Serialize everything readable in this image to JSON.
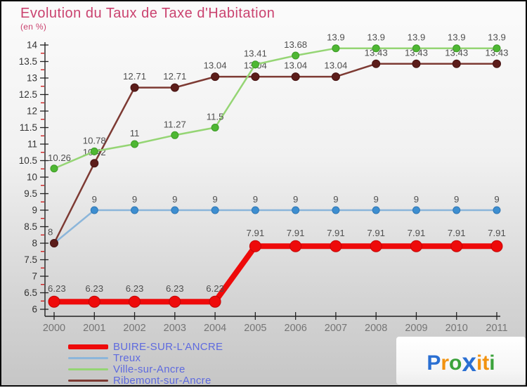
{
  "chart_data": {
    "type": "line",
    "title": "Evolution du Taux de Taxe d'Habitation",
    "subtitle": "(en %)",
    "x": [
      2000,
      2001,
      2002,
      2003,
      2004,
      2005,
      2006,
      2007,
      2008,
      2009,
      2010,
      2011
    ],
    "ylim": [
      6,
      14
    ],
    "ytick_step": 0.5,
    "yminor_tick_offset": 0.25,
    "grid": false,
    "legend_position": "bottom-left",
    "axis": {
      "axis_color": "#222222",
      "minor_tick_color": "#cc1111",
      "year_label_color": "#757575",
      "ytick_label_color": "#333333",
      "point_label_color": "#4f4f4f"
    },
    "series": [
      {
        "name": "BUIRE-SUR-L'ANCRE",
        "values": [
          6.23,
          6.23,
          6.23,
          6.23,
          6.23,
          7.91,
          7.91,
          7.91,
          7.91,
          7.91,
          7.91,
          7.91
        ],
        "labels": [
          "6.23",
          "6.23",
          "6.23",
          "6.23",
          "6.23",
          "7.91",
          "7.91",
          "7.91",
          "7.91",
          "7.91",
          "7.91",
          "7.91"
        ],
        "line_color": "#ee0a0a",
        "dot_color": "#ee0a0a",
        "dot_stroke": "#c40606",
        "line_width": 8,
        "dot_radius": 8,
        "legend_thickness": 7,
        "draw_order": 4
      },
      {
        "name": "Treux",
        "values": [
          8,
          9,
          9,
          9,
          9,
          9,
          9,
          9,
          9,
          9,
          9,
          9
        ],
        "labels": [
          "",
          "9",
          "9",
          "9",
          "9",
          "9",
          "9",
          "9",
          "9",
          "9",
          "9",
          "9"
        ],
        "line_color": "#8cb6da",
        "dot_color": "#3d8ed0",
        "dot_stroke": "#2f77b5",
        "line_width": 2.5,
        "dot_radius": 5,
        "legend_thickness": 3,
        "draw_order": 1
      },
      {
        "name": "Ville-sur-Ancre",
        "values": [
          10.26,
          10.78,
          11,
          11.27,
          11.5,
          13.41,
          13.68,
          13.9,
          13.9,
          13.9,
          13.9,
          13.9
        ],
        "labels": [
          "10.26",
          "10.78",
          "11",
          "11.27",
          "11.5",
          "13.41",
          "13.68",
          "13.9",
          "13.9",
          "13.9",
          "13.9",
          "13.9"
        ],
        "line_color": "#95d574",
        "dot_color": "#4eb733",
        "dot_stroke": "#3d9a26",
        "line_width": 2.5,
        "dot_radius": 5,
        "legend_thickness": 3,
        "draw_order": 3
      },
      {
        "name": "Ribemont-sur-Ancre",
        "values": [
          8,
          10.42,
          12.71,
          12.71,
          13.04,
          13.04,
          13.04,
          13.04,
          13.43,
          13.43,
          13.43,
          13.43
        ],
        "labels": [
          "8",
          "10.42",
          "12.71",
          "12.71",
          "13.04",
          "13.04",
          "13.04",
          "13.04",
          "13.43",
          "13.43",
          "13.43",
          "13.43"
        ],
        "line_color": "#7d3a33",
        "dot_color": "#5c1d1a",
        "dot_stroke": "#471312",
        "line_width": 2.5,
        "dot_radius": 5.5,
        "legend_thickness": 3,
        "draw_order": 2
      }
    ]
  },
  "legend": {
    "label_color": "#5e6adf"
  },
  "logo": {
    "name": "Proxiti",
    "letters": [
      {
        "ch": "P",
        "color": "#2a6fd2"
      },
      {
        "ch": "r",
        "color": "#f2920f"
      },
      {
        "ch": "o",
        "color": "#3ba23b"
      },
      {
        "ch": "x",
        "color": "#2a6fd2"
      },
      {
        "ch": "i",
        "color": "#f2920f"
      },
      {
        "ch": "t",
        "color": "#f2920f"
      },
      {
        "ch": "i",
        "color": "#3ba23b"
      }
    ]
  }
}
